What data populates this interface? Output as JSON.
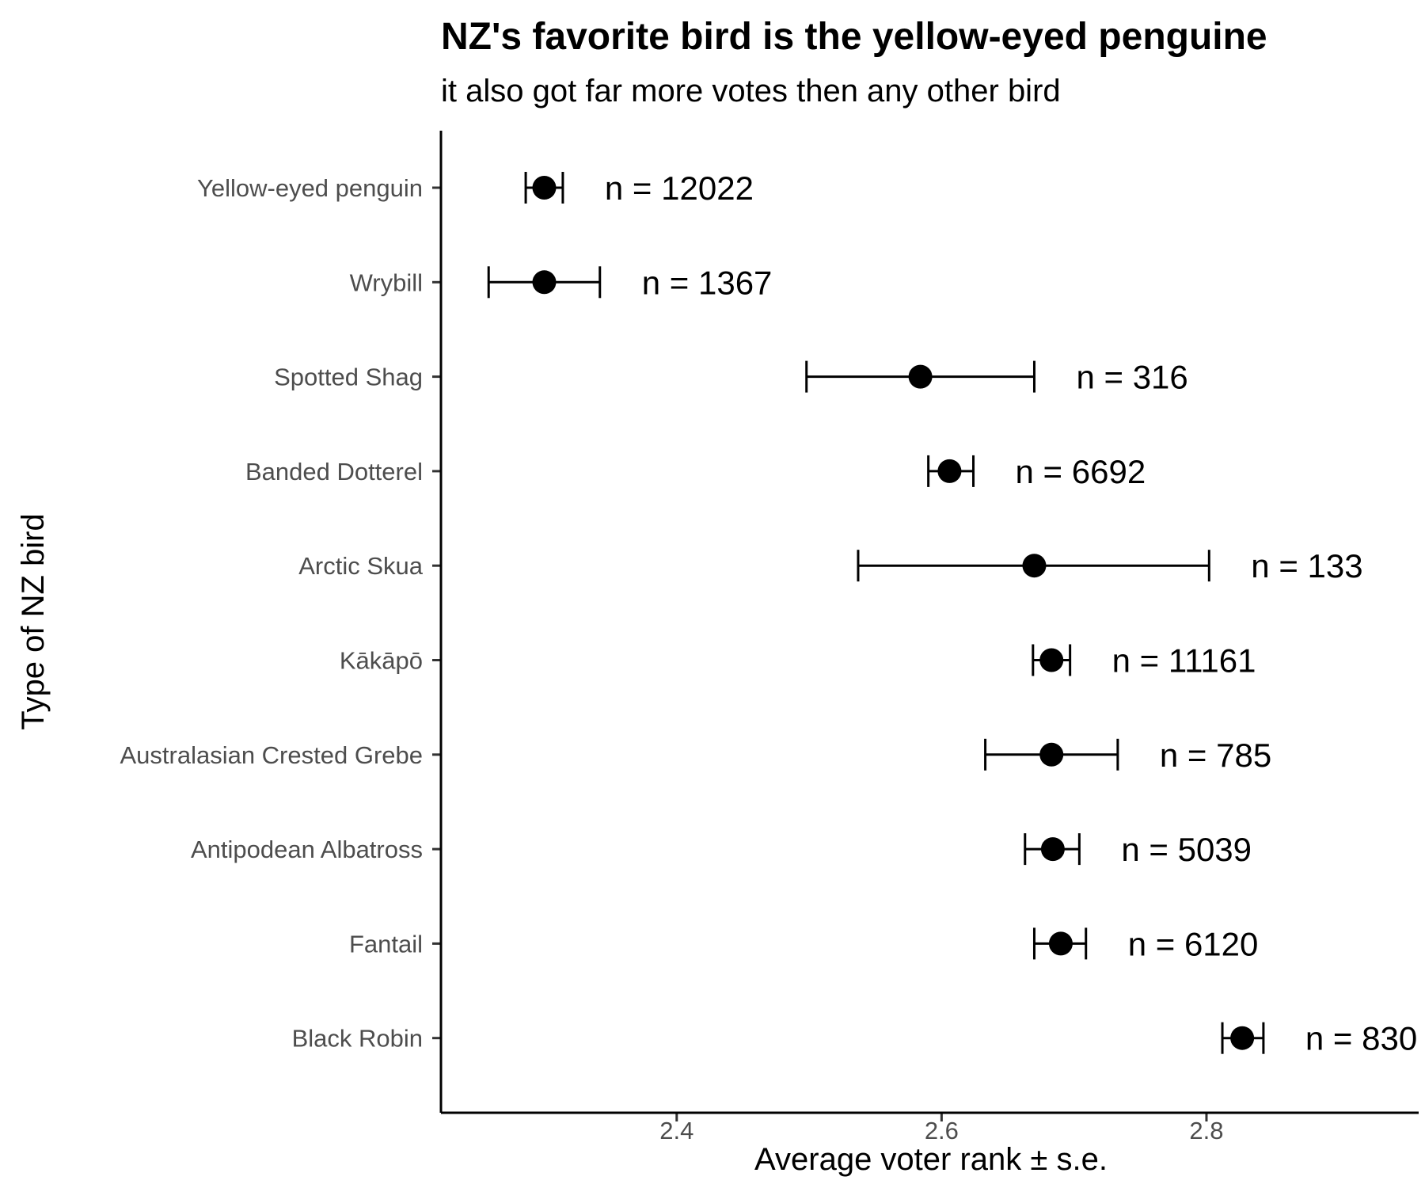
{
  "chart_data": {
    "type": "scatter",
    "title": "NZ's favorite bird is the yellow-eyed penguine",
    "subtitle": "it also got far more votes then any  other bird",
    "xlabel": "Average voter rank  ± s.e.",
    "ylabel": "Type of NZ bird",
    "xlim": [
      2.222,
      2.965
    ],
    "xticks": [
      2.4,
      2.6,
      2.8
    ],
    "xtick_labels": [
      "2.4",
      "2.6",
      "2.8"
    ],
    "grid": false,
    "n_prefix": "n = ",
    "n_label_visible_text": "830",
    "points": [
      {
        "bird": "Yellow-eyed penguin",
        "mean": 2.3,
        "lo": 2.286,
        "hi": 2.314,
        "n": "12022"
      },
      {
        "bird": "Wrybill",
        "mean": 2.3,
        "lo": 2.258,
        "hi": 2.342,
        "n": "1367"
      },
      {
        "bird": "Spotted Shag",
        "mean": 2.584,
        "lo": 2.498,
        "hi": 2.67,
        "n": "316"
      },
      {
        "bird": "Banded Dotterel",
        "mean": 2.606,
        "lo": 2.59,
        "hi": 2.624,
        "n": "6692"
      },
      {
        "bird": "Arctic Skua",
        "mean": 2.67,
        "lo": 2.537,
        "hi": 2.802,
        "n": "133"
      },
      {
        "bird": "Kākāpō",
        "mean": 2.683,
        "lo": 2.669,
        "hi": 2.697,
        "n": "11161"
      },
      {
        "bird": "Australasian Crested Grebe",
        "mean": 2.683,
        "lo": 2.633,
        "hi": 2.733,
        "n": "785"
      },
      {
        "bird": "Antipodean Albatross",
        "mean": 2.684,
        "lo": 2.663,
        "hi": 2.704,
        "n": "5039"
      },
      {
        "bird": "Fantail",
        "mean": 2.69,
        "lo": 2.67,
        "hi": 2.709,
        "n": "6120"
      },
      {
        "bird": "Black Robin",
        "mean": 2.827,
        "lo": 2.812,
        "hi": 2.843,
        "n": "830"
      }
    ]
  }
}
